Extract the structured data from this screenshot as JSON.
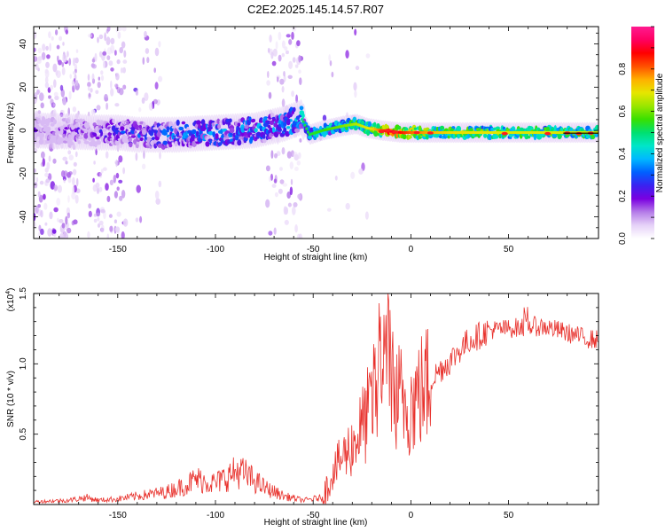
{
  "title": "C2E2.2025.145.14.57.R07",
  "chart_data": [
    {
      "type": "heatmap",
      "xlabel": "Height of straight line (km)",
      "ylabel": "Frequency (Hz)",
      "xlim": [
        -193,
        96
      ],
      "ylim": [
        -50,
        48
      ],
      "xticks": [
        -150,
        -100,
        -50,
        0,
        50
      ],
      "yticks": [
        -40,
        -20,
        0,
        20,
        40
      ],
      "colorbar": {
        "label": "Normalized spectral amplitude",
        "range": [
          0,
          1
        ],
        "ticks": [
          "0.0",
          "0.2",
          "0.4",
          "0.6",
          "0.8"
        ],
        "colormap": [
          "#ffffff",
          "#e6d2f8",
          "#b57ce8",
          "#7a00e0",
          "#3a22f0",
          "#0060ff",
          "#00b8ff",
          "#00e6c8",
          "#00e070",
          "#39e000",
          "#9ae600",
          "#e6e600",
          "#ffb000",
          "#ff5000",
          "#ff0000",
          "#ff0060",
          "#ff1a90"
        ]
      },
      "band_center_hz": [
        [
          -193,
          0
        ],
        [
          -160,
          -1
        ],
        [
          -150,
          -1
        ],
        [
          -140,
          -2
        ],
        [
          -120,
          -2
        ],
        [
          -100,
          -1
        ],
        [
          -80,
          0
        ],
        [
          -65,
          3
        ],
        [
          -56,
          6
        ],
        [
          -52,
          -2
        ],
        [
          -45,
          0
        ],
        [
          -35,
          2
        ],
        [
          -28,
          3
        ],
        [
          -22,
          1
        ],
        [
          -15,
          0
        ],
        [
          -5,
          -1
        ],
        [
          10,
          -1
        ],
        [
          40,
          -1
        ],
        [
          96,
          -1
        ]
      ],
      "band_amplitude": [
        [
          -193,
          0.15
        ],
        [
          -172,
          0.18
        ],
        [
          -160,
          0.22
        ],
        [
          -150,
          0.25
        ],
        [
          -135,
          0.3
        ],
        [
          -115,
          0.33
        ],
        [
          -95,
          0.36
        ],
        [
          -75,
          0.38
        ],
        [
          -60,
          0.42
        ],
        [
          -52,
          0.45
        ],
        [
          -40,
          0.5
        ],
        [
          -30,
          0.55
        ],
        [
          -20,
          0.62
        ],
        [
          -10,
          0.85
        ],
        [
          0,
          0.72
        ],
        [
          20,
          0.62
        ],
        [
          50,
          0.6
        ],
        [
          75,
          0.6
        ],
        [
          96,
          0.58
        ]
      ]
    },
    {
      "type": "line",
      "xlabel": "Height of straight line (km)",
      "ylabel": "SNR (10 * v/v)",
      "y_multiplier": "(x10^4)",
      "xlim": [
        -193,
        96
      ],
      "ylim": [
        0,
        1.5
      ],
      "xticks": [
        -150,
        -100,
        -50,
        0,
        50
      ],
      "yticks": [
        "0.5",
        "1.0",
        "1.5"
      ],
      "series": [
        {
          "color": "#e8322d",
          "x": [
            -193,
            -175,
            -166,
            -160,
            -150,
            -135,
            -125,
            -115,
            -110,
            -100,
            -95,
            -88,
            -80,
            -75,
            -65,
            -55,
            -45,
            -40,
            -36,
            -30,
            -25,
            -20,
            -16,
            -13,
            -10,
            -8,
            -5,
            0,
            5,
            10,
            15,
            20,
            25,
            30,
            35,
            40,
            50,
            60,
            70,
            80,
            90,
            96
          ],
          "y": [
            0.02,
            0.03,
            0.05,
            0.03,
            0.04,
            0.07,
            0.09,
            0.14,
            0.18,
            0.15,
            0.19,
            0.24,
            0.17,
            0.12,
            0.06,
            0.03,
            0.05,
            0.22,
            0.32,
            0.42,
            0.55,
            0.7,
            0.9,
            1.0,
            0.95,
            0.85,
            0.75,
            0.72,
            0.8,
            0.88,
            0.96,
            1.02,
            1.1,
            1.17,
            1.2,
            1.24,
            1.25,
            1.27,
            1.26,
            1.22,
            1.18,
            1.17
          ]
        }
      ]
    }
  ]
}
